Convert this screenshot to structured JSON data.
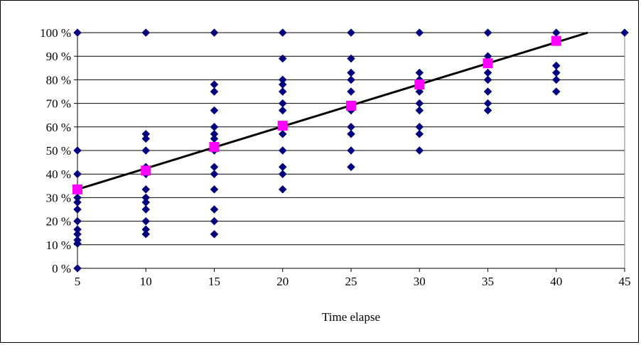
{
  "chart_data": {
    "type": "scatter",
    "title": "",
    "xlabel": "Time elapse",
    "ylabel": "",
    "xlim": [
      5,
      45
    ],
    "ylim": [
      0,
      100
    ],
    "x_ticks": [
      "5",
      "10",
      "15",
      "20",
      "25",
      "30",
      "35",
      "40",
      "45"
    ],
    "y_ticks": [
      "0 %",
      "10 %",
      "20 %",
      "30 %",
      "40 %",
      "50 %",
      "60 %",
      "70 %",
      "80 %",
      "90 %",
      "100 %"
    ],
    "grid": "horizontal",
    "legend": "none",
    "series": [
      {
        "marker": "diamond",
        "color": "#00007f",
        "points": [
          [
            5,
            0
          ],
          [
            5,
            10.5
          ],
          [
            5,
            12
          ],
          [
            5,
            14.5
          ],
          [
            5,
            16.5
          ],
          [
            5,
            20
          ],
          [
            5,
            25
          ],
          [
            5,
            28
          ],
          [
            5,
            30
          ],
          [
            5,
            40
          ],
          [
            5,
            50
          ],
          [
            5,
            100
          ],
          [
            10,
            14.5
          ],
          [
            10,
            16.5
          ],
          [
            10,
            20
          ],
          [
            10,
            25
          ],
          [
            10,
            28
          ],
          [
            10,
            30
          ],
          [
            10,
            33.5
          ],
          [
            10,
            40
          ],
          [
            10,
            42
          ],
          [
            10,
            43
          ],
          [
            10,
            50
          ],
          [
            10,
            55
          ],
          [
            10,
            57
          ],
          [
            10,
            100
          ],
          [
            15,
            14.5
          ],
          [
            15,
            20
          ],
          [
            15,
            25
          ],
          [
            15,
            33.5
          ],
          [
            15,
            40
          ],
          [
            15,
            43
          ],
          [
            15,
            50
          ],
          [
            15,
            55
          ],
          [
            15,
            57
          ],
          [
            15,
            60
          ],
          [
            15,
            67
          ],
          [
            15,
            75
          ],
          [
            15,
            78
          ],
          [
            15,
            100
          ],
          [
            20,
            33.5
          ],
          [
            20,
            40
          ],
          [
            20,
            43
          ],
          [
            20,
            50
          ],
          [
            20,
            57
          ],
          [
            20,
            60
          ],
          [
            20,
            67
          ],
          [
            20,
            70
          ],
          [
            20,
            75
          ],
          [
            20,
            78
          ],
          [
            20,
            80
          ],
          [
            20,
            89
          ],
          [
            20,
            100
          ],
          [
            25,
            43
          ],
          [
            25,
            50
          ],
          [
            25,
            57
          ],
          [
            25,
            60
          ],
          [
            25,
            67
          ],
          [
            25,
            75
          ],
          [
            25,
            80
          ],
          [
            25,
            83
          ],
          [
            25,
            89
          ],
          [
            25,
            100
          ],
          [
            30,
            50
          ],
          [
            30,
            57
          ],
          [
            30,
            60
          ],
          [
            30,
            67
          ],
          [
            30,
            70
          ],
          [
            30,
            75
          ],
          [
            30,
            80
          ],
          [
            30,
            83
          ],
          [
            30,
            100
          ],
          [
            35,
            67
          ],
          [
            35,
            70
          ],
          [
            35,
            75
          ],
          [
            35,
            80
          ],
          [
            35,
            83
          ],
          [
            35,
            87
          ],
          [
            35,
            90
          ],
          [
            35,
            100
          ],
          [
            40,
            75
          ],
          [
            40,
            80
          ],
          [
            40,
            83
          ],
          [
            40,
            86
          ],
          [
            40,
            100
          ],
          [
            45,
            100
          ]
        ]
      },
      {
        "marker": "square",
        "color": "#ff00ff",
        "points": [
          [
            5,
            33.5
          ],
          [
            10,
            41.5
          ],
          [
            15,
            51.5
          ],
          [
            20,
            60.5
          ],
          [
            25,
            69
          ],
          [
            30,
            78
          ],
          [
            35,
            87
          ],
          [
            40,
            96.5
          ]
        ]
      }
    ],
    "trendline": {
      "color": "#000000",
      "points": [
        [
          5,
          33.5
        ],
        [
          42.3,
          100
        ]
      ]
    }
  }
}
